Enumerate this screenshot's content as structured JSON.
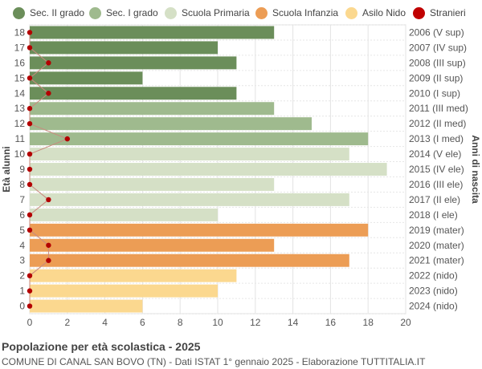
{
  "chart_data": {
    "type": "bar",
    "orientation": "horizontal",
    "title": "Popolazione per età scolastica - 2025",
    "subtitle": "COMUNE DI CANAL SAN BOVO (TN) - Dati ISTAT 1° gennaio 2025 - Elaborazione TUTTITALIA.IT",
    "ylabel": "Età alunni",
    "y2label": "Anni di nascita",
    "xlim": [
      0,
      20
    ],
    "xticks": [
      0,
      2,
      4,
      6,
      8,
      10,
      12,
      14,
      16,
      18,
      20
    ],
    "grid": true,
    "legend_position": "top",
    "legend": [
      {
        "name": "Sec. II grado",
        "color": "#6b8e5a"
      },
      {
        "name": "Sec. I grado",
        "color": "#9fba8e"
      },
      {
        "name": "Scuola Primaria",
        "color": "#d5e0c6"
      },
      {
        "name": "Scuola Infanzia",
        "color": "#ec9d55"
      },
      {
        "name": "Asilo Nido",
        "color": "#fbd88f"
      },
      {
        "name": "Stranieri",
        "color": "#c00000"
      }
    ],
    "rows": [
      {
        "age": "18",
        "year": "2006 (V sup)",
        "value": 13,
        "stranieri": 0,
        "group": 0
      },
      {
        "age": "17",
        "year": "2007 (IV sup)",
        "value": 10,
        "stranieri": 0,
        "group": 0
      },
      {
        "age": "16",
        "year": "2008 (III sup)",
        "value": 11,
        "stranieri": 1,
        "group": 0
      },
      {
        "age": "15",
        "year": "2009 (II sup)",
        "value": 6,
        "stranieri": 0,
        "group": 0
      },
      {
        "age": "14",
        "year": "2010 (I sup)",
        "value": 11,
        "stranieri": 1,
        "group": 0
      },
      {
        "age": "13",
        "year": "2011 (III med)",
        "value": 13,
        "stranieri": 0,
        "group": 1
      },
      {
        "age": "12",
        "year": "2012 (II med)",
        "value": 15,
        "stranieri": 0,
        "group": 1
      },
      {
        "age": "11",
        "year": "2013 (I med)",
        "value": 18,
        "stranieri": 2,
        "group": 1
      },
      {
        "age": "10",
        "year": "2014 (V ele)",
        "value": 17,
        "stranieri": 0,
        "group": 2
      },
      {
        "age": "9",
        "year": "2015 (IV ele)",
        "value": 19,
        "stranieri": 0,
        "group": 2
      },
      {
        "age": "8",
        "year": "2016 (III ele)",
        "value": 13,
        "stranieri": 0,
        "group": 2
      },
      {
        "age": "7",
        "year": "2017 (II ele)",
        "value": 17,
        "stranieri": 1,
        "group": 2
      },
      {
        "age": "6",
        "year": "2018 (I ele)",
        "value": 10,
        "stranieri": 0,
        "group": 2
      },
      {
        "age": "5",
        "year": "2019 (mater)",
        "value": 18,
        "stranieri": 0,
        "group": 3
      },
      {
        "age": "4",
        "year": "2020 (mater)",
        "value": 13,
        "stranieri": 1,
        "group": 3
      },
      {
        "age": "3",
        "year": "2021 (mater)",
        "value": 17,
        "stranieri": 1,
        "group": 3
      },
      {
        "age": "2",
        "year": "2022 (nido)",
        "value": 11,
        "stranieri": 0,
        "group": 4
      },
      {
        "age": "1",
        "year": "2023 (nido)",
        "value": 10,
        "stranieri": 0,
        "group": 4
      },
      {
        "age": "0",
        "year": "2024 (nido)",
        "value": 6,
        "stranieri": 0,
        "group": 4
      }
    ]
  }
}
